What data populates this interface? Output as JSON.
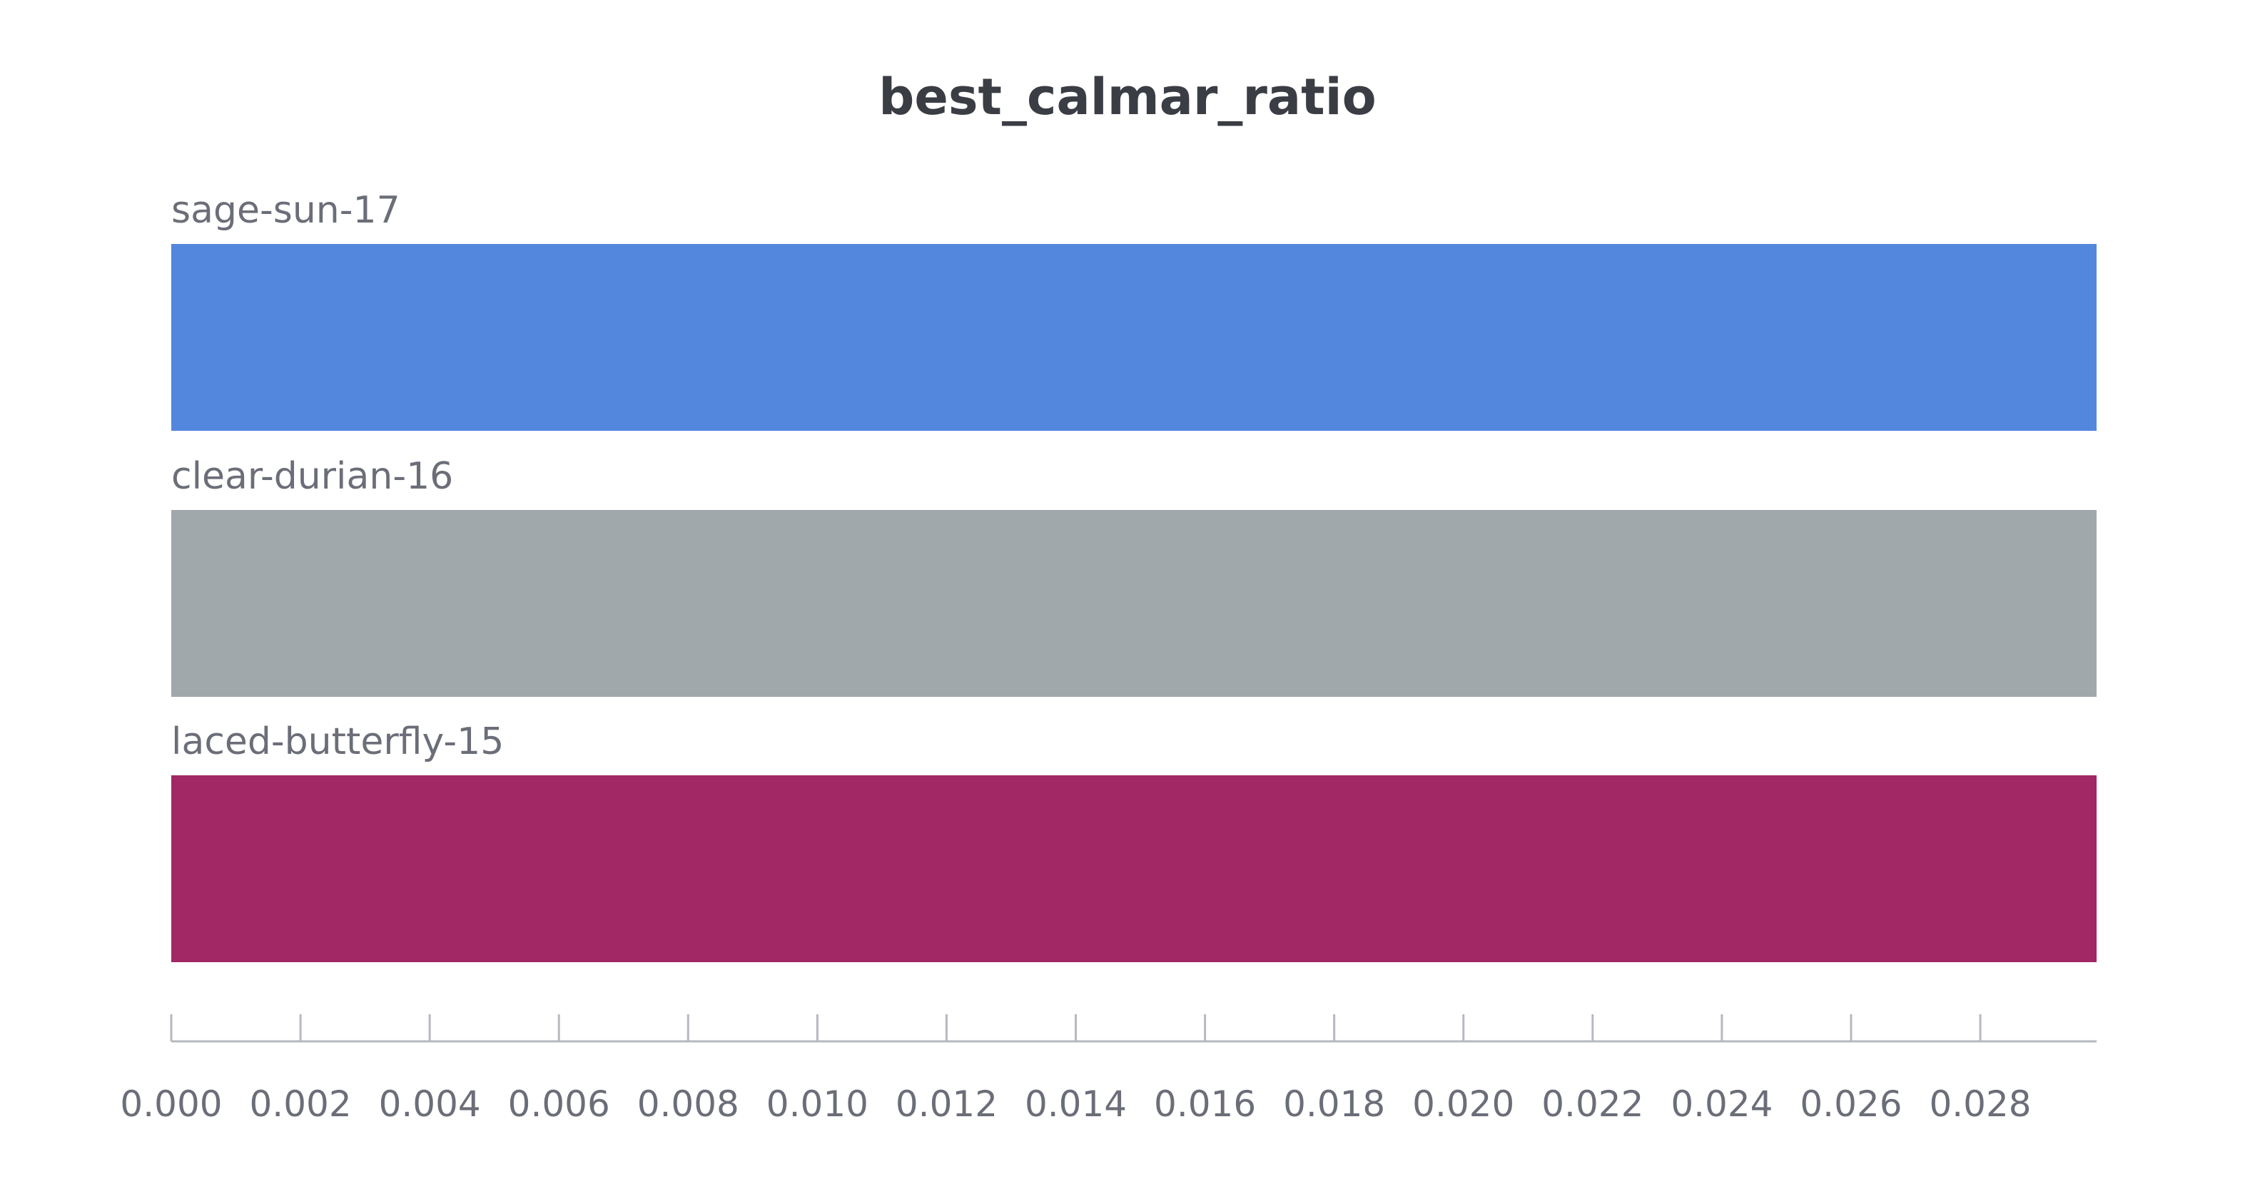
{
  "chart_data": {
    "type": "bar",
    "orientation": "horizontal",
    "title": "best_calmar_ratio",
    "xlabel": "",
    "ylabel": "",
    "grid": false,
    "xlim": [
      0,
      0.0298
    ],
    "x_ticks": [
      "0.000",
      "0.002",
      "0.004",
      "0.006",
      "0.008",
      "0.010",
      "0.012",
      "0.014",
      "0.016",
      "0.018",
      "0.020",
      "0.022",
      "0.024",
      "0.026",
      "0.028"
    ],
    "categories": [
      "sage-sun-17",
      "clear-durian-16",
      "laced-butterfly-15"
    ],
    "values": [
      0.0298,
      0.0298,
      0.0298
    ],
    "colors": [
      "#5387dd",
      "#a1a8ab",
      "#a12864"
    ]
  }
}
